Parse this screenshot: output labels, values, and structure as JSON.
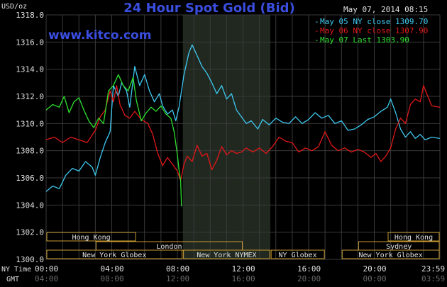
{
  "header": {
    "unit": "USD/oz",
    "title": "24 Hour Spot Gold (Bid)",
    "date": "May 07, 2014 08:15",
    "site": "www.kitco.com"
  },
  "colors": {
    "background": "#000000",
    "grid": "#3a3a3a",
    "shade": "#202820",
    "blue": "#3ec8f0",
    "red": "#e01818",
    "green": "#2ee02e",
    "title": "#3a4ee0",
    "site": "#3a4ee0",
    "label": "#e0e0e0",
    "session_border": "#c89a30"
  },
  "chart_data": {
    "type": "line",
    "title": "24 Hour Spot Gold (Bid)",
    "ylabel": "USD/oz",
    "ylim": [
      1300.0,
      1318.0
    ],
    "y_ticks": [
      "1318.0",
      "1316.0",
      "1314.0",
      "1312.0",
      "1310.0",
      "1308.0",
      "1306.0",
      "1304.0",
      "1302.0",
      "1300.0"
    ],
    "x_hours": [
      0,
      24
    ],
    "x_ticks_ny": [
      "00:00",
      "04:00",
      "08:00",
      "12:00",
      "16:00",
      "20:00",
      "23:59"
    ],
    "x_ticks_gmt": [
      "04:00",
      "08:00",
      "12:00",
      "16:00",
      "20:00",
      "00:00",
      "03:59"
    ],
    "x_row_labels": [
      "NY Time",
      "GMT"
    ],
    "grid": true,
    "legend_position": "top-right",
    "series": [
      {
        "name": "May 05 NY close 1309.70",
        "color_key": "blue",
        "points": [
          [
            0,
            1305.0
          ],
          [
            0.4,
            1305.4
          ],
          [
            0.8,
            1305.2
          ],
          [
            1.2,
            1306.2
          ],
          [
            1.6,
            1306.7
          ],
          [
            2.0,
            1306.5
          ],
          [
            2.4,
            1307.2
          ],
          [
            2.8,
            1306.8
          ],
          [
            3.0,
            1306.2
          ],
          [
            3.3,
            1307.5
          ],
          [
            3.6,
            1308.6
          ],
          [
            3.9,
            1309.4
          ],
          [
            4.1,
            1312.8
          ],
          [
            4.4,
            1312.0
          ],
          [
            4.6,
            1313.0
          ],
          [
            4.9,
            1312.4
          ],
          [
            5.1,
            1311.2
          ],
          [
            5.4,
            1314.2
          ],
          [
            5.7,
            1312.8
          ],
          [
            6.0,
            1313.6
          ],
          [
            6.3,
            1312.4
          ],
          [
            6.6,
            1311.6
          ],
          [
            6.9,
            1312.2
          ],
          [
            7.1,
            1311.3
          ],
          [
            7.4,
            1310.7
          ],
          [
            7.7,
            1311.0
          ],
          [
            7.9,
            1310.2
          ],
          [
            8.1,
            1311.2
          ],
          [
            8.4,
            1313.6
          ],
          [
            8.7,
            1315.2
          ],
          [
            8.9,
            1315.8
          ],
          [
            9.2,
            1315.0
          ],
          [
            9.5,
            1314.2
          ],
          [
            9.8,
            1313.7
          ],
          [
            10.1,
            1313.0
          ],
          [
            10.4,
            1312.2
          ],
          [
            10.7,
            1312.8
          ],
          [
            11.0,
            1311.8
          ],
          [
            11.3,
            1312.2
          ],
          [
            11.6,
            1311.0
          ],
          [
            11.9,
            1310.5
          ],
          [
            12.2,
            1310.0
          ],
          [
            12.5,
            1310.2
          ],
          [
            12.9,
            1309.6
          ],
          [
            13.2,
            1310.3
          ],
          [
            13.6,
            1309.9
          ],
          [
            14.0,
            1310.4
          ],
          [
            14.4,
            1310.1
          ],
          [
            14.8,
            1310.0
          ],
          [
            15.2,
            1310.5
          ],
          [
            15.6,
            1310.0
          ],
          [
            16.0,
            1310.3
          ],
          [
            16.4,
            1310.8
          ],
          [
            16.8,
            1310.4
          ],
          [
            17.2,
            1310.6
          ],
          [
            17.6,
            1310.0
          ],
          [
            18.0,
            1310.2
          ],
          [
            18.4,
            1309.5
          ],
          [
            18.8,
            1309.6
          ],
          [
            19.2,
            1309.9
          ],
          [
            19.6,
            1310.3
          ],
          [
            20.0,
            1310.5
          ],
          [
            20.4,
            1310.9
          ],
          [
            20.8,
            1311.2
          ],
          [
            21.0,
            1311.8
          ],
          [
            21.3,
            1310.8
          ],
          [
            21.6,
            1309.6
          ],
          [
            21.9,
            1309.0
          ],
          [
            22.2,
            1309.4
          ],
          [
            22.5,
            1308.9
          ],
          [
            22.8,
            1309.2
          ],
          [
            23.1,
            1308.8
          ],
          [
            23.5,
            1309.0
          ],
          [
            23.99,
            1308.9
          ]
        ]
      },
      {
        "name": "May 06 NY close 1307.90",
        "color_key": "red",
        "points": [
          [
            0,
            1308.8
          ],
          [
            0.5,
            1309.0
          ],
          [
            1.0,
            1308.6
          ],
          [
            1.5,
            1309.0
          ],
          [
            2.0,
            1308.8
          ],
          [
            2.5,
            1308.6
          ],
          [
            3.0,
            1309.5
          ],
          [
            3.3,
            1310.5
          ],
          [
            3.6,
            1311.0
          ],
          [
            3.9,
            1312.4
          ],
          [
            4.1,
            1311.6
          ],
          [
            4.3,
            1312.8
          ],
          [
            4.5,
            1311.4
          ],
          [
            4.8,
            1310.6
          ],
          [
            5.1,
            1310.4
          ],
          [
            5.4,
            1310.9
          ],
          [
            5.8,
            1310.3
          ],
          [
            6.2,
            1310.0
          ],
          [
            6.5,
            1309.2
          ],
          [
            6.8,
            1307.8
          ],
          [
            7.1,
            1306.9
          ],
          [
            7.4,
            1307.5
          ],
          [
            7.7,
            1307.0
          ],
          [
            8.0,
            1306.5
          ],
          [
            8.2,
            1305.8
          ],
          [
            8.4,
            1307.0
          ],
          [
            8.6,
            1307.6
          ],
          [
            8.9,
            1307.2
          ],
          [
            9.2,
            1308.4
          ],
          [
            9.5,
            1307.6
          ],
          [
            9.8,
            1307.8
          ],
          [
            10.1,
            1306.6
          ],
          [
            10.4,
            1307.3
          ],
          [
            10.7,
            1308.3
          ],
          [
            11.0,
            1307.7
          ],
          [
            11.3,
            1308.0
          ],
          [
            11.6,
            1307.8
          ],
          [
            11.9,
            1307.9
          ],
          [
            12.2,
            1308.2
          ],
          [
            12.6,
            1307.9
          ],
          [
            13.0,
            1308.2
          ],
          [
            13.4,
            1307.8
          ],
          [
            13.8,
            1308.3
          ],
          [
            14.2,
            1309.0
          ],
          [
            14.6,
            1308.7
          ],
          [
            15.0,
            1308.6
          ],
          [
            15.4,
            1307.9
          ],
          [
            15.8,
            1308.2
          ],
          [
            16.2,
            1308.0
          ],
          [
            16.6,
            1308.3
          ],
          [
            17.0,
            1309.4
          ],
          [
            17.4,
            1308.4
          ],
          [
            17.8,
            1308.0
          ],
          [
            18.2,
            1308.2
          ],
          [
            18.6,
            1307.9
          ],
          [
            19.0,
            1308.1
          ],
          [
            19.4,
            1307.9
          ],
          [
            19.8,
            1307.5
          ],
          [
            20.1,
            1307.8
          ],
          [
            20.4,
            1307.2
          ],
          [
            20.7,
            1307.6
          ],
          [
            21.0,
            1308.2
          ],
          [
            21.3,
            1309.6
          ],
          [
            21.6,
            1310.4
          ],
          [
            21.9,
            1310.0
          ],
          [
            22.2,
            1311.4
          ],
          [
            22.5,
            1311.8
          ],
          [
            22.8,
            1311.6
          ],
          [
            23.0,
            1312.8
          ],
          [
            23.2,
            1312.2
          ],
          [
            23.5,
            1311.3
          ],
          [
            23.99,
            1311.2
          ]
        ]
      },
      {
        "name": "May 07 Last 1303.90",
        "color_key": "green",
        "points": [
          [
            0,
            1311.0
          ],
          [
            0.4,
            1311.4
          ],
          [
            0.8,
            1311.2
          ],
          [
            1.1,
            1312.0
          ],
          [
            1.4,
            1310.8
          ],
          [
            1.7,
            1311.6
          ],
          [
            2.0,
            1311.9
          ],
          [
            2.3,
            1311.0
          ],
          [
            2.6,
            1310.2
          ],
          [
            2.9,
            1309.7
          ],
          [
            3.2,
            1310.4
          ],
          [
            3.5,
            1310.0
          ],
          [
            3.8,
            1312.4
          ],
          [
            4.1,
            1312.8
          ],
          [
            4.4,
            1313.6
          ],
          [
            4.7,
            1312.8
          ],
          [
            5.0,
            1312.4
          ],
          [
            5.3,
            1313.4
          ],
          [
            5.5,
            1311.7
          ],
          [
            5.8,
            1310.2
          ],
          [
            6.1,
            1310.8
          ],
          [
            6.4,
            1311.2
          ],
          [
            6.7,
            1310.9
          ],
          [
            7.0,
            1311.3
          ],
          [
            7.3,
            1310.7
          ],
          [
            7.6,
            1310.4
          ],
          [
            7.8,
            1309.4
          ],
          [
            8.0,
            1307.7
          ],
          [
            8.1,
            1306.6
          ],
          [
            8.2,
            1305.8
          ],
          [
            8.25,
            1303.9
          ]
        ]
      }
    ],
    "shaded_region_hours": [
      8.333,
      13.667
    ],
    "sessions": [
      {
        "label": "Hong Kong",
        "start": 0,
        "end": 5.5,
        "row": 0
      },
      {
        "label": "London",
        "start": 3.0,
        "end": 12.0,
        "row": 1
      },
      {
        "label": "New York Globex",
        "start": 0,
        "end": 8.33,
        "row": 2
      },
      {
        "label": "New York NYMEX",
        "start": 8.33,
        "end": 13.67,
        "row": 2
      },
      {
        "label": "NY Globex",
        "start": 13.67,
        "end": 17.0,
        "row": 2
      },
      {
        "label": "Hong Kong",
        "start": 20.8,
        "end": 24,
        "row": 0
      },
      {
        "label": "Sydney",
        "start": 19.0,
        "end": 24,
        "row": 1
      },
      {
        "label": "New York Globex",
        "start": 18.0,
        "end": 24,
        "row": 2
      }
    ]
  }
}
